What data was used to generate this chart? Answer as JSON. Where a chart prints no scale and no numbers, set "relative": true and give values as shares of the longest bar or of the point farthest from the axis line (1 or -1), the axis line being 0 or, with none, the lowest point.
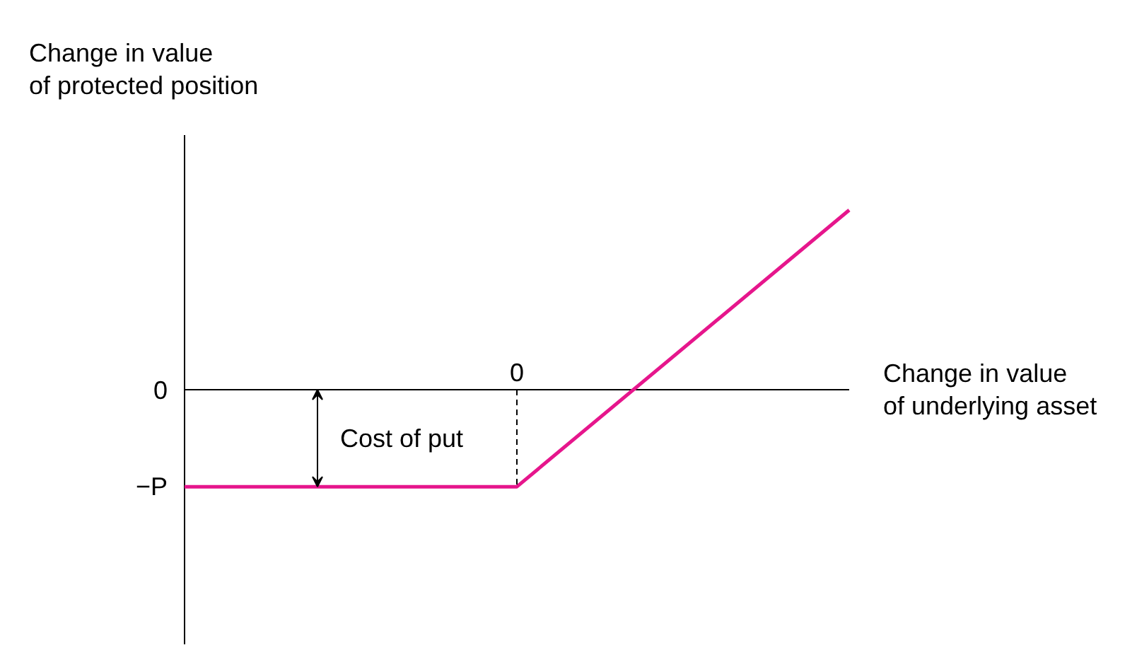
{
  "chart_data": {
    "type": "line",
    "relative": true,
    "xlabel": "Change in value\nof underlying asset",
    "ylabel": "Change in value\nof protected position",
    "categories": [
      null,
      null,
      null
    ],
    "series": [
      {
        "color": "#e6168c",
        "values": [
          -0.54,
          -0.54,
          1
        ]
      }
    ],
    "annotations": [
      "Cost of put",
      "0",
      "0",
      "−P"
    ],
    "grid": false,
    "marker": "none",
    "line_style": "solid"
  }
}
